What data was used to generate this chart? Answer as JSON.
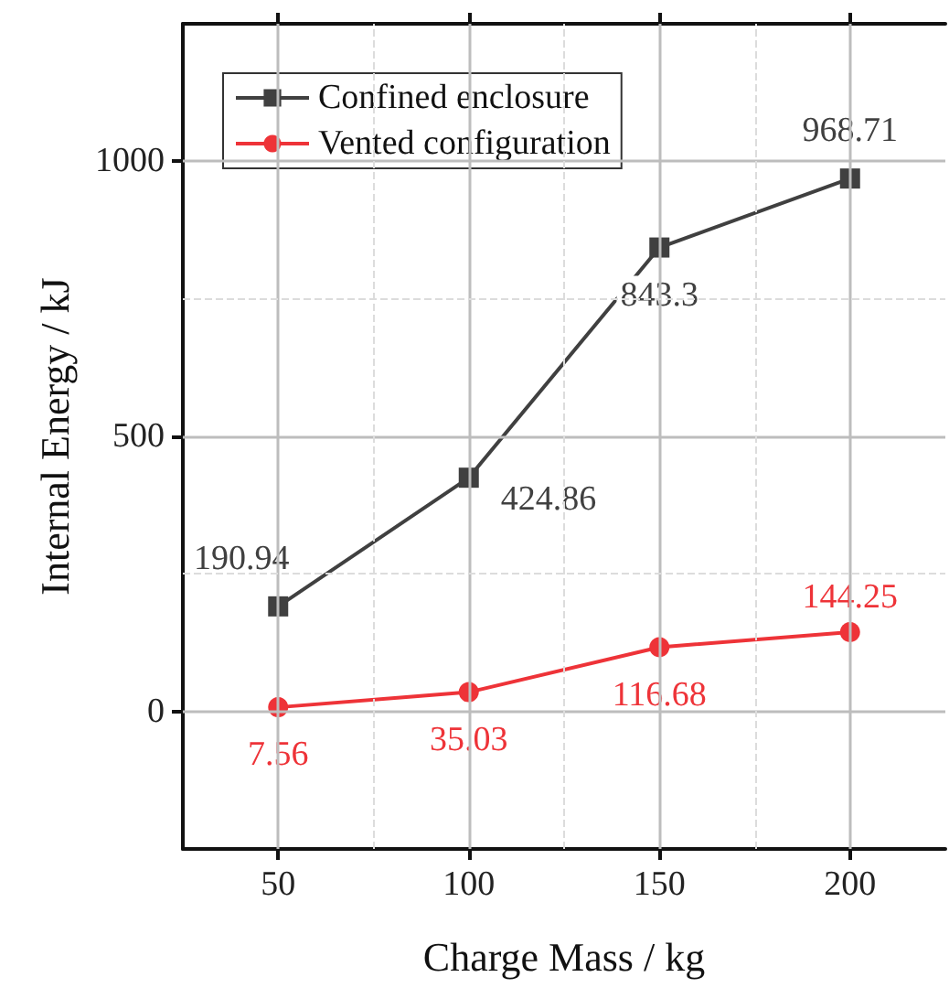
{
  "chart_data": {
    "type": "line",
    "xlabel": "Charge Mass / kg",
    "ylabel": "Internal Energy / kJ",
    "x": [
      50,
      100,
      150,
      200
    ],
    "series": [
      {
        "name": "Confined enclosure",
        "color": "#404040",
        "marker": "square",
        "values": [
          190.94,
          424.86,
          843.3,
          968.71
        ]
      },
      {
        "name": "Vented configuration",
        "color": "#ee3338",
        "marker": "circle",
        "values": [
          7.56,
          35.03,
          116.68,
          144.25
        ]
      }
    ],
    "data_labels": true,
    "xlim": [
      25,
      225
    ],
    "xticks": [
      50,
      100,
      150,
      200
    ],
    "ylim": [
      -250,
      1250
    ],
    "yticks": [
      0,
      500,
      1000
    ],
    "grid": true,
    "legend": "top left",
    "line_style": "solid"
  }
}
